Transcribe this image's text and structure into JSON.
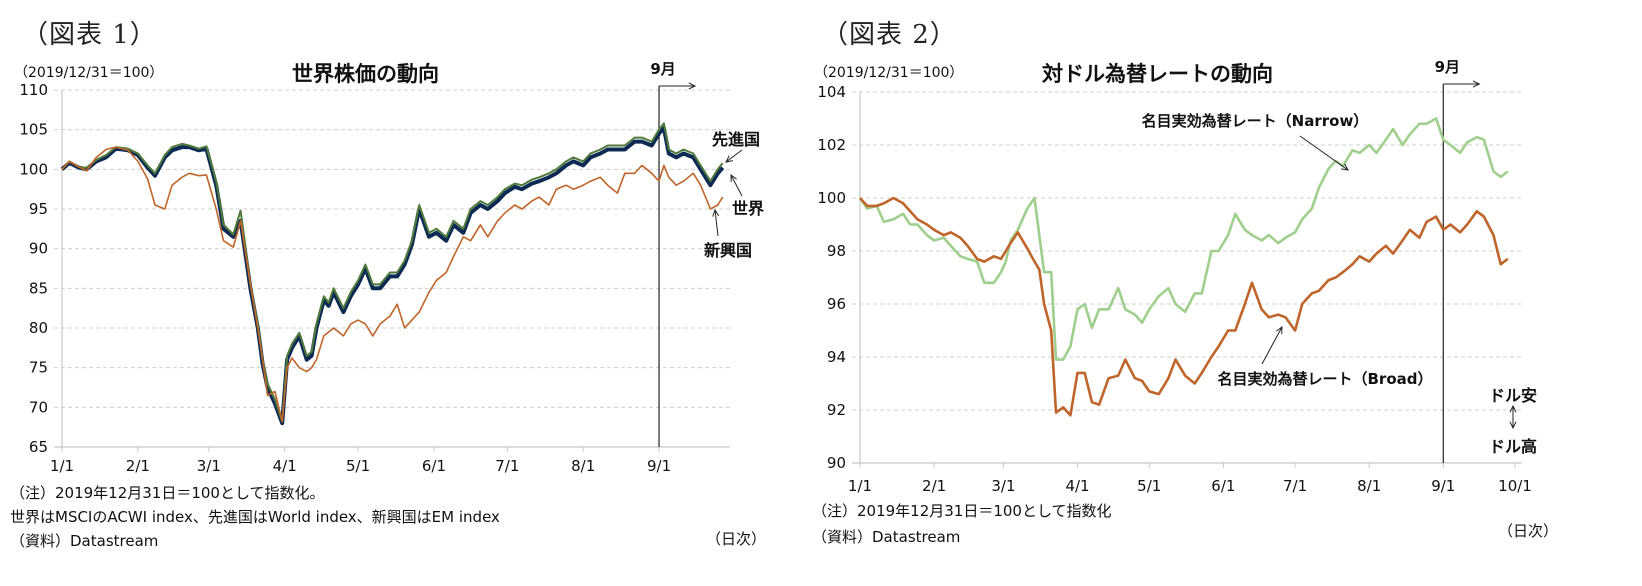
{
  "panel1": {
    "fig_label": "（図表 1）",
    "unit": "（2019/12/31＝100）",
    "title": "世界株価の動向",
    "notes": [
      "（注）2019年12月31日＝100として指数化。",
      "世界はMSCIのACWI index、先進国はWorld index、新興国はEM index",
      "（資料）Datastream"
    ],
    "frequency": "（日次）",
    "marker_label": "9月",
    "annotations": {
      "developed": "先進国",
      "world": "世界",
      "emerging": "新興国"
    }
  },
  "panel2": {
    "fig_label": "（図表 2）",
    "unit": "（2019/12/31＝100）",
    "title": "対ドル為替レートの動向",
    "notes": [
      "（注）2019年12月31日＝100として指数化",
      "（資料）Datastream"
    ],
    "frequency": "（日次）",
    "marker_label": "9月",
    "annotations": {
      "narrow": "名目実効為替レート（Narrow）",
      "broad": "名目実効為替レート（Broad）",
      "weak": "ドル安",
      "strong": "ドル高"
    }
  },
  "chart_data": [
    {
      "type": "line",
      "title": "世界株価の動向",
      "xlabel": "（日次）",
      "ylabel": "（2019/12/31＝100）",
      "ylim": [
        65,
        110
      ],
      "yticks": [
        65,
        70,
        75,
        80,
        85,
        90,
        95,
        100,
        105,
        110
      ],
      "xticks": [
        "1/1",
        "2/1",
        "3/1",
        "4/1",
        "5/1",
        "6/1",
        "7/1",
        "8/1",
        "9/1"
      ],
      "xlim_days": [
        0,
        273
      ],
      "grid": true,
      "vline": {
        "day": 244,
        "label": "9月"
      },
      "series": [
        {
          "name": "世界",
          "color": "#0d2a55",
          "x": [
            0,
            3,
            7,
            10,
            14,
            18,
            22,
            27,
            31,
            35,
            38,
            42,
            45,
            49,
            52,
            56,
            59,
            63,
            66,
            70,
            73,
            77,
            80,
            82,
            84,
            87,
            90,
            92,
            94,
            97,
            100,
            102,
            104,
            107,
            109,
            111,
            115,
            118,
            121,
            124,
            127,
            130,
            134,
            137,
            140,
            143,
            146,
            150,
            153,
            157,
            160,
            164,
            167,
            171,
            174,
            178,
            181,
            185,
            188,
            192,
            195,
            199,
            202,
            206,
            209,
            213,
            216,
            220,
            223,
            227,
            230,
            234,
            237,
            241,
            244,
            246,
            248,
            251,
            254,
            258,
            261,
            265,
            268,
            270
          ],
          "values": [
            100,
            100.8,
            100.2,
            100.0,
            101.0,
            101.5,
            102.6,
            102.4,
            101.8,
            100.2,
            99.2,
            101.5,
            102.4,
            102.8,
            102.8,
            102.4,
            102.6,
            98.0,
            92.5,
            91.5,
            93.5,
            85.0,
            80.0,
            75.5,
            72.5,
            70.5,
            68.0,
            76.0,
            77.5,
            79.0,
            76.0,
            76.5,
            80.0,
            83.5,
            82.8,
            84.5,
            82.0,
            84.0,
            85.5,
            87.5,
            85.0,
            85.0,
            86.5,
            86.5,
            88.0,
            90.5,
            95.0,
            91.5,
            92.0,
            91.0,
            93.0,
            92.0,
            94.5,
            95.5,
            95.0,
            96.0,
            97.0,
            97.8,
            97.5,
            98.2,
            98.5,
            99.0,
            99.5,
            100.5,
            101.0,
            100.5,
            101.5,
            102.0,
            102.5,
            102.5,
            102.5,
            103.5,
            103.5,
            103.0,
            104.5,
            105.2,
            102.0,
            101.5,
            102.0,
            101.5,
            100.0,
            98.0,
            99.5,
            100.2
          ]
        },
        {
          "name": "先進国",
          "color": "#4f7a3c",
          "x": [
            0,
            3,
            7,
            10,
            14,
            18,
            22,
            27,
            31,
            35,
            38,
            42,
            45,
            49,
            52,
            56,
            59,
            63,
            66,
            70,
            73,
            77,
            80,
            82,
            84,
            87,
            90,
            92,
            94,
            97,
            100,
            102,
            104,
            107,
            109,
            111,
            115,
            118,
            121,
            124,
            127,
            130,
            134,
            137,
            140,
            143,
            146,
            150,
            153,
            157,
            160,
            164,
            167,
            171,
            174,
            178,
            181,
            185,
            188,
            192,
            195,
            199,
            202,
            206,
            209,
            213,
            216,
            220,
            223,
            227,
            230,
            234,
            237,
            241,
            244,
            246,
            248,
            251,
            254,
            258,
            261,
            265,
            268,
            270
          ],
          "values": [
            100,
            101.0,
            100.3,
            100.2,
            101.2,
            101.8,
            102.8,
            102.6,
            102.0,
            100.5,
            99.5,
            101.8,
            102.8,
            103.2,
            103.0,
            102.6,
            102.9,
            98.5,
            93.0,
            91.8,
            94.8,
            85.5,
            80.5,
            76.0,
            73.0,
            71.0,
            68.2,
            76.5,
            78.0,
            79.4,
            76.5,
            77.0,
            80.5,
            84.0,
            83.2,
            85.0,
            82.5,
            84.5,
            86.0,
            88.0,
            85.5,
            85.5,
            87.0,
            87.0,
            88.5,
            91.0,
            95.5,
            92.0,
            92.5,
            91.5,
            93.5,
            92.5,
            95.0,
            96.0,
            95.5,
            96.5,
            97.5,
            98.2,
            98.0,
            98.7,
            99.0,
            99.5,
            100.0,
            101.0,
            101.5,
            101.0,
            102.0,
            102.5,
            103.0,
            103.0,
            103.0,
            104.0,
            104.0,
            103.5,
            105.0,
            105.8,
            102.5,
            102.0,
            102.5,
            102.0,
            100.5,
            98.5,
            100.0,
            100.8
          ]
        },
        {
          "name": "新興国",
          "color": "#c0652a",
          "x": [
            0,
            3,
            7,
            10,
            14,
            18,
            22,
            27,
            31,
            35,
            38,
            42,
            45,
            49,
            52,
            56,
            59,
            63,
            66,
            70,
            73,
            77,
            80,
            82,
            84,
            87,
            90,
            92,
            94,
            97,
            100,
            102,
            104,
            107,
            109,
            111,
            115,
            118,
            121,
            124,
            127,
            130,
            134,
            137,
            140,
            143,
            146,
            150,
            153,
            157,
            160,
            164,
            167,
            171,
            174,
            178,
            181,
            185,
            188,
            192,
            195,
            199,
            202,
            206,
            209,
            213,
            216,
            220,
            223,
            227,
            230,
            234,
            237,
            241,
            244,
            246,
            248,
            251,
            254,
            258,
            261,
            265,
            268,
            270
          ],
          "values": [
            100,
            101.0,
            100.3,
            99.8,
            101.5,
            102.5,
            102.8,
            102.4,
            101.0,
            98.8,
            95.5,
            95.0,
            98.0,
            99.0,
            99.5,
            99.2,
            99.3,
            95.0,
            91.0,
            90.2,
            93.5,
            85.5,
            80.0,
            76.0,
            71.5,
            72.0,
            68.2,
            75.0,
            76.2,
            75.0,
            74.5,
            75.0,
            76.0,
            79.0,
            79.5,
            80.0,
            79.0,
            80.5,
            81.0,
            80.5,
            79.0,
            80.5,
            81.5,
            83.0,
            80.0,
            81.0,
            82.0,
            84.5,
            86.0,
            87.0,
            89.0,
            91.5,
            91.0,
            93.0,
            91.5,
            93.5,
            94.5,
            95.5,
            95.0,
            96.0,
            96.5,
            95.5,
            97.5,
            98.0,
            97.5,
            98.0,
            98.5,
            99.0,
            98.0,
            97.0,
            99.5,
            99.5,
            100.5,
            99.5,
            98.5,
            100.5,
            99.0,
            98.0,
            98.5,
            99.5,
            98.0,
            95.0,
            95.5,
            96.5
          ]
        }
      ],
      "annotations": [
        "先進国",
        "世界",
        "新興国",
        "9月"
      ]
    },
    {
      "type": "line",
      "title": "対ドル為替レートの動向",
      "xlabel": "（日次）",
      "ylabel": "（2019/12/31＝100）",
      "ylim": [
        90,
        104
      ],
      "yticks": [
        90,
        92,
        94,
        96,
        98,
        100,
        102,
        104
      ],
      "xticks": [
        "1/1",
        "2/1",
        "3/1",
        "4/1",
        "5/1",
        "6/1",
        "7/1",
        "8/1",
        "9/1",
        "10/1"
      ],
      "xlim_days": [
        0,
        274
      ],
      "grid": true,
      "vline": {
        "day": 244,
        "label": "9月"
      },
      "series": [
        {
          "name": "名目実効為替レート（Narrow）",
          "color": "#9fcf8c",
          "x": [
            0,
            3,
            7,
            10,
            14,
            18,
            21,
            24,
            28,
            31,
            35,
            38,
            42,
            45,
            49,
            52,
            56,
            59,
            61,
            63,
            66,
            70,
            73,
            77,
            80,
            82,
            85,
            88,
            91,
            94,
            97,
            100,
            104,
            108,
            111,
            115,
            118,
            121,
            125,
            129,
            132,
            136,
            140,
            143,
            147,
            150,
            154,
            157,
            161,
            164,
            168,
            171,
            175,
            178,
            182,
            185,
            189,
            192,
            196,
            199,
            202,
            206,
            209,
            213,
            216,
            220,
            223,
            227,
            230,
            234,
            237,
            241,
            244,
            247,
            251,
            254,
            258,
            261,
            265,
            268,
            271
          ],
          "values": [
            100,
            99.6,
            99.7,
            99.1,
            99.2,
            99.4,
            99.0,
            99.0,
            98.6,
            98.4,
            98.5,
            98.2,
            97.8,
            97.7,
            97.6,
            96.8,
            96.8,
            97.2,
            97.6,
            98.4,
            98.8,
            99.6,
            100.0,
            97.2,
            97.2,
            93.9,
            93.9,
            94.4,
            95.8,
            96.0,
            95.1,
            95.8,
            95.8,
            96.6,
            95.8,
            95.6,
            95.3,
            95.8,
            96.3,
            96.6,
            96.0,
            95.7,
            96.4,
            96.4,
            98.0,
            98.0,
            98.6,
            99.4,
            98.8,
            98.6,
            98.4,
            98.6,
            98.3,
            98.5,
            98.7,
            99.2,
            99.6,
            100.4,
            101.1,
            101.4,
            101.2,
            101.8,
            101.7,
            102.0,
            101.7,
            102.2,
            102.6,
            102.0,
            102.4,
            102.8,
            102.8,
            103.0,
            102.2,
            102.0,
            101.7,
            102.1,
            102.3,
            102.2,
            101.0,
            100.8,
            101.0
          ]
        },
        {
          "name": "名目実効為替レート（Broad）",
          "color": "#c0652a",
          "x": [
            0,
            3,
            7,
            10,
            14,
            18,
            21,
            24,
            28,
            31,
            35,
            38,
            42,
            45,
            49,
            52,
            56,
            59,
            61,
            63,
            66,
            70,
            73,
            75,
            77,
            80,
            82,
            85,
            88,
            91,
            94,
            97,
            100,
            104,
            108,
            111,
            115,
            118,
            121,
            125,
            129,
            132,
            136,
            140,
            143,
            147,
            150,
            154,
            157,
            161,
            164,
            168,
            171,
            175,
            178,
            182,
            185,
            189,
            192,
            196,
            199,
            202,
            206,
            209,
            213,
            216,
            220,
            223,
            227,
            230,
            234,
            237,
            241,
            244,
            247,
            251,
            254,
            258,
            261,
            265,
            268,
            271
          ],
          "values": [
            100,
            99.7,
            99.7,
            99.8,
            100.0,
            99.8,
            99.5,
            99.2,
            99.0,
            98.8,
            98.6,
            98.7,
            98.5,
            98.2,
            97.7,
            97.6,
            97.8,
            97.7,
            98.0,
            98.3,
            98.7,
            98.1,
            97.6,
            97.3,
            96.0,
            95.0,
            91.9,
            92.1,
            91.8,
            93.4,
            93.4,
            92.3,
            92.2,
            93.2,
            93.3,
            93.9,
            93.2,
            93.1,
            92.7,
            92.6,
            93.2,
            93.9,
            93.3,
            93.0,
            93.4,
            94.0,
            94.4,
            95.0,
            95.0,
            96.0,
            96.8,
            95.8,
            95.5,
            95.6,
            95.5,
            95.0,
            96.0,
            96.4,
            96.5,
            96.9,
            97.0,
            97.2,
            97.5,
            97.8,
            97.6,
            97.9,
            98.2,
            97.9,
            98.4,
            98.8,
            98.5,
            99.1,
            99.3,
            98.8,
            99.0,
            98.7,
            99.0,
            99.5,
            99.3,
            98.6,
            97.5,
            97.7
          ]
        }
      ],
      "annotations": [
        "名目実効為替レート（Narrow）",
        "名目実効為替レート（Broad）",
        "ドル安",
        "ドル高",
        "9月"
      ]
    }
  ]
}
